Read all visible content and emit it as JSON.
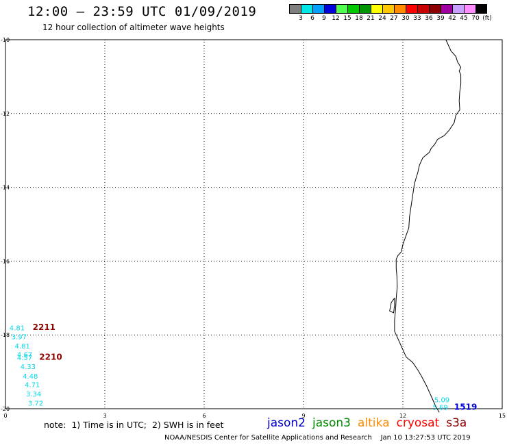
{
  "header": {
    "title": "12:00 – 23:59 UTC 01/09/2019",
    "subtitle": "12 hour collection of altimeter wave heights"
  },
  "legend": {
    "colors": [
      "#808080",
      "#00e6e6",
      "#00a0ff",
      "#0000dc",
      "#50ff50",
      "#00c800",
      "#009600",
      "#ffff00",
      "#ffc800",
      "#ff8c00",
      "#ff0000",
      "#c80000",
      "#8c0000",
      "#a000a0",
      "#c8a0ff",
      "#ff8cff",
      "#000000"
    ],
    "labels": [
      "3",
      "6",
      "9",
      "12",
      "15",
      "18",
      "21",
      "24",
      "27",
      "30",
      "33",
      "36",
      "39",
      "42",
      "45",
      "70",
      "(ft)"
    ]
  },
  "map": {
    "x_ticks": [
      "0",
      "3",
      "6",
      "9",
      "12",
      "15"
    ],
    "y_ticks": [
      "-10",
      "-12",
      "-14",
      "-16",
      "-18",
      "-20"
    ],
    "x_range": [
      0,
      15
    ],
    "y_range": [
      -20,
      -10
    ],
    "grid": "dotted",
    "wave_labels": [
      {
        "text": "4.81",
        "lon": 0.12,
        "lat": -17.88,
        "color": "#00d8e8"
      },
      {
        "text": "3.97",
        "lon": 0.18,
        "lat": -18.12,
        "color": "#00d8e8"
      },
      {
        "text": "4.81",
        "lon": 0.28,
        "lat": -18.37,
        "color": "#00d8e8"
      },
      {
        "text": "4.67",
        "lon": 0.35,
        "lat": -18.6,
        "color": "#00d8e8"
      },
      {
        "text": "4.57",
        "lon": 0.35,
        "lat": -18.68,
        "color": "#00d8e8"
      },
      {
        "text": "4.33",
        "lon": 0.45,
        "lat": -18.92,
        "color": "#00d8e8"
      },
      {
        "text": "4.48",
        "lon": 0.52,
        "lat": -19.18,
        "color": "#00d8e8"
      },
      {
        "text": "4.71",
        "lon": 0.58,
        "lat": -19.42,
        "color": "#00d8e8"
      },
      {
        "text": "3.34",
        "lon": 0.62,
        "lat": -19.67,
        "color": "#00d8e8"
      },
      {
        "text": "3.72",
        "lon": 0.68,
        "lat": -19.92,
        "color": "#00d8e8"
      },
      {
        "text": "5.09",
        "lon": 12.95,
        "lat": -19.82,
        "color": "#00d8e8"
      },
      {
        "text": "5.69",
        "lon": 12.9,
        "lat": -20.03,
        "color": "#00d8e8"
      }
    ],
    "pass_times": [
      {
        "text": "2211",
        "lon": 0.82,
        "lat": -17.87,
        "color": "#8c0000"
      },
      {
        "text": "2210",
        "lon": 1.02,
        "lat": -18.67,
        "color": "#8c0000"
      },
      {
        "text": "1519",
        "lon": 13.55,
        "lat": -20.03,
        "color": "#0000dc"
      }
    ],
    "coastline": [
      [
        13.3,
        -10.0
      ],
      [
        13.45,
        -10.3
      ],
      [
        13.6,
        -10.45
      ],
      [
        13.65,
        -10.6
      ],
      [
        13.75,
        -10.75
      ],
      [
        13.7,
        -10.85
      ],
      [
        13.75,
        -10.95
      ],
      [
        13.75,
        -11.2
      ],
      [
        13.72,
        -11.4
      ],
      [
        13.7,
        -11.65
      ],
      [
        13.72,
        -11.9
      ],
      [
        13.6,
        -12.05
      ],
      [
        13.55,
        -12.25
      ],
      [
        13.4,
        -12.45
      ],
      [
        13.25,
        -12.6
      ],
      [
        13.05,
        -12.7
      ],
      [
        12.95,
        -12.85
      ],
      [
        12.85,
        -12.95
      ],
      [
        12.8,
        -13.05
      ],
      [
        12.6,
        -13.2
      ],
      [
        12.5,
        -13.4
      ],
      [
        12.45,
        -13.6
      ],
      [
        12.4,
        -13.75
      ],
      [
        12.35,
        -13.9
      ],
      [
        12.3,
        -14.2
      ],
      [
        12.25,
        -14.5
      ],
      [
        12.2,
        -14.8
      ],
      [
        12.18,
        -15.1
      ],
      [
        12.1,
        -15.3
      ],
      [
        12.0,
        -15.55
      ],
      [
        11.95,
        -15.75
      ],
      [
        11.85,
        -15.85
      ],
      [
        11.8,
        -15.95
      ],
      [
        11.8,
        -16.2
      ],
      [
        11.82,
        -16.4
      ],
      [
        11.83,
        -16.7
      ],
      [
        11.8,
        -17.0
      ],
      [
        11.78,
        -17.3
      ],
      [
        11.75,
        -17.6
      ],
      [
        11.75,
        -17.9
      ],
      [
        11.85,
        -18.1
      ],
      [
        11.95,
        -18.3
      ],
      [
        12.1,
        -18.6
      ],
      [
        12.3,
        -18.75
      ],
      [
        12.45,
        -18.95
      ],
      [
        12.55,
        -19.1
      ],
      [
        12.7,
        -19.35
      ],
      [
        12.8,
        -19.55
      ],
      [
        12.9,
        -19.75
      ],
      [
        13.0,
        -19.95
      ],
      [
        13.1,
        -20.1
      ]
    ],
    "coast_islet": [
      [
        11.75,
        -17.0
      ],
      [
        11.65,
        -17.12
      ],
      [
        11.6,
        -17.35
      ],
      [
        11.72,
        -17.4
      ],
      [
        11.75,
        -17.2
      ],
      [
        11.75,
        -17.0
      ]
    ]
  },
  "footer": {
    "note": "note:  1) Time is in UTC;  2) SWH is in feet",
    "satellites": [
      {
        "name": "jason2",
        "color": "#0000c8"
      },
      {
        "name": "jason3",
        "color": "#008c00"
      },
      {
        "name": "altika",
        "color": "#ff8c00"
      },
      {
        "name": "cryosat",
        "color": "#ff0000"
      },
      {
        "name": "s3a",
        "color": "#8c0000"
      }
    ],
    "credit": "NOAA/NESDIS Center for Satellite Applications and Research    Jan 10 13:27:53 UTC 2019"
  }
}
